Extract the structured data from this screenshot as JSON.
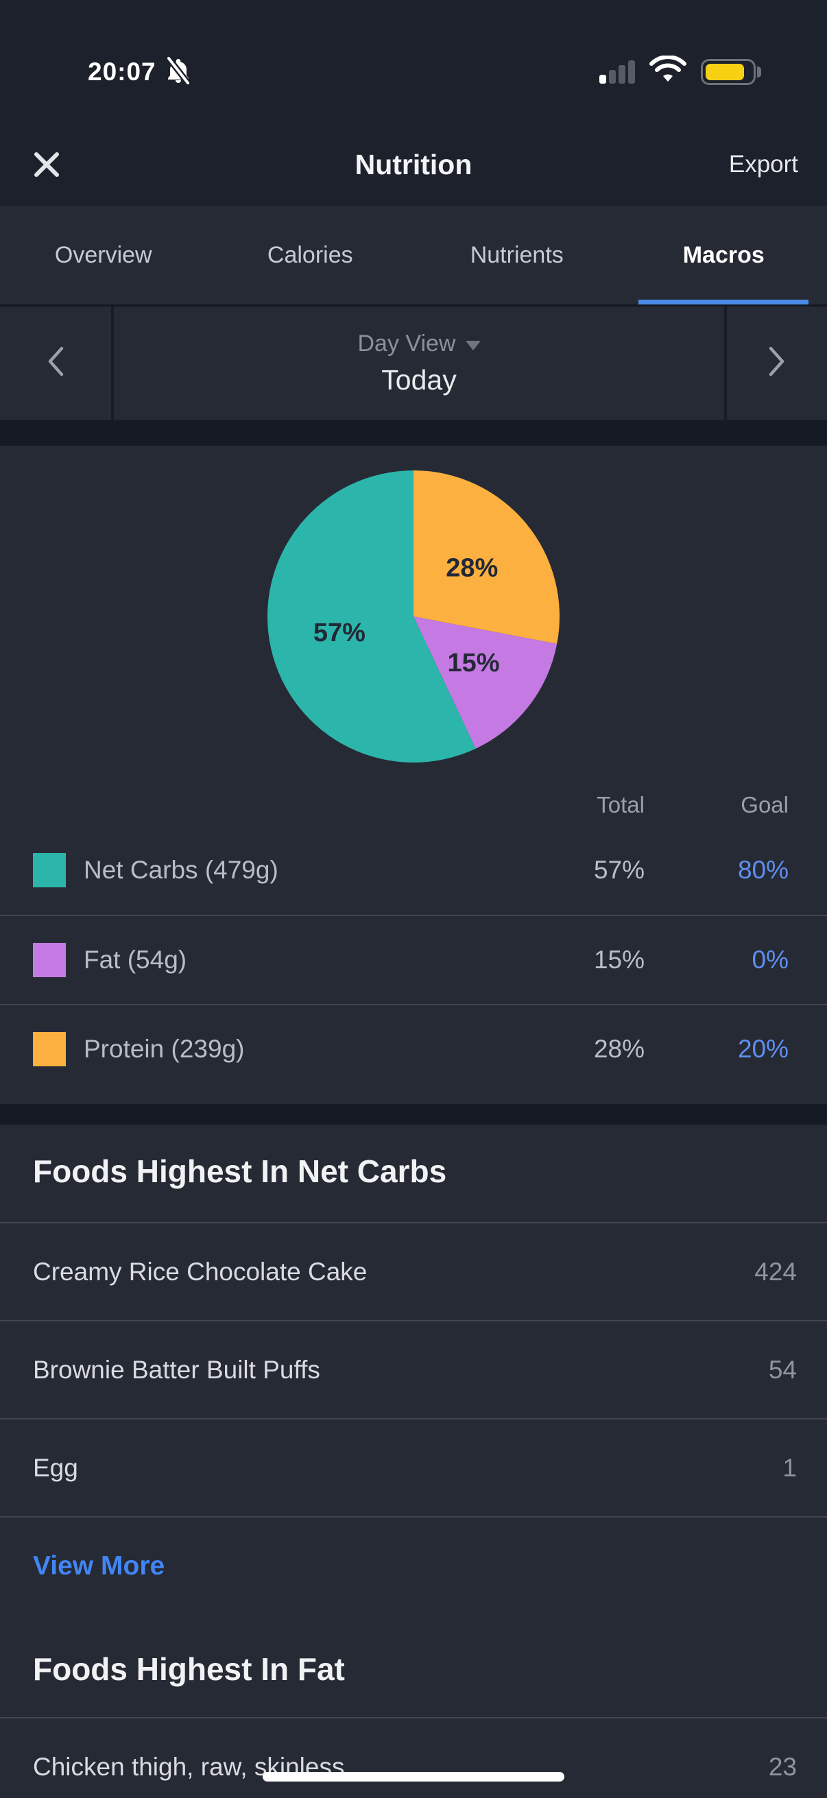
{
  "status_bar": {
    "time": "20:07",
    "icons": [
      "bell-slash-icon",
      "signal-icon",
      "wifi-icon",
      "battery-low-power-icon"
    ],
    "signal_bars_filled": 1,
    "signal_bars_total": 4
  },
  "nav": {
    "title": "Nutrition",
    "export_label": "Export",
    "close_icon": "x-close-icon"
  },
  "tabs": {
    "items": [
      "Overview",
      "Calories",
      "Nutrients",
      "Macros"
    ],
    "active": "Macros"
  },
  "date_selector": {
    "mode_label": "Day View",
    "value": "Today",
    "prev_icon": "chevron-left-icon",
    "next_icon": "chevron-right-icon",
    "dropdown_icon": "caret-down-icon"
  },
  "chart_data": {
    "type": "pie",
    "title": "Macros distribution",
    "start_angle_deg": 0,
    "direction": "clockwise",
    "legend_position": "below",
    "slices": [
      {
        "label": "Protein",
        "value_pct": 28,
        "data_label": "28%",
        "color": "#fbb03f"
      },
      {
        "label": "Fat",
        "value_pct": 15,
        "data_label": "15%",
        "color": "#c47ae2"
      },
      {
        "label": "Net Carbs",
        "value_pct": 57,
        "data_label": "57%",
        "color": "#2cb5ab"
      }
    ]
  },
  "legend": {
    "columns": {
      "total": "Total",
      "goal": "Goal"
    },
    "rows": [
      {
        "label": "Net Carbs (479g)",
        "color": "#2cb5ab",
        "total": "57%",
        "goal": "80%"
      },
      {
        "label": "Fat (54g)",
        "color": "#c47ae2",
        "total": "15%",
        "goal": "0%"
      },
      {
        "label": "Protein (239g)",
        "color": "#fbb03f",
        "total": "28%",
        "goal": "20%"
      }
    ]
  },
  "sections": {
    "net_carbs": {
      "heading": "Foods Highest In Net Carbs",
      "rows": [
        {
          "name": "Creamy Rice Chocolate Cake",
          "value": "424"
        },
        {
          "name": "Brownie Batter Built Puffs",
          "value": "54"
        },
        {
          "name": "Egg",
          "value": "1"
        }
      ],
      "view_more_label": "View More"
    },
    "fat": {
      "heading": "Foods Highest In Fat",
      "rows": [
        {
          "name": "Chicken thigh, raw, skinless",
          "value": "23"
        }
      ]
    }
  },
  "colors": {
    "accent_blue": "#4a8ce8",
    "link_blue": "#4285f4",
    "goal_blue": "#5f8ff0",
    "battery_yellow": "#f7d014",
    "background_dark": "#1d212b",
    "background_card": "#262a35",
    "separator_dark": "#161a24"
  }
}
